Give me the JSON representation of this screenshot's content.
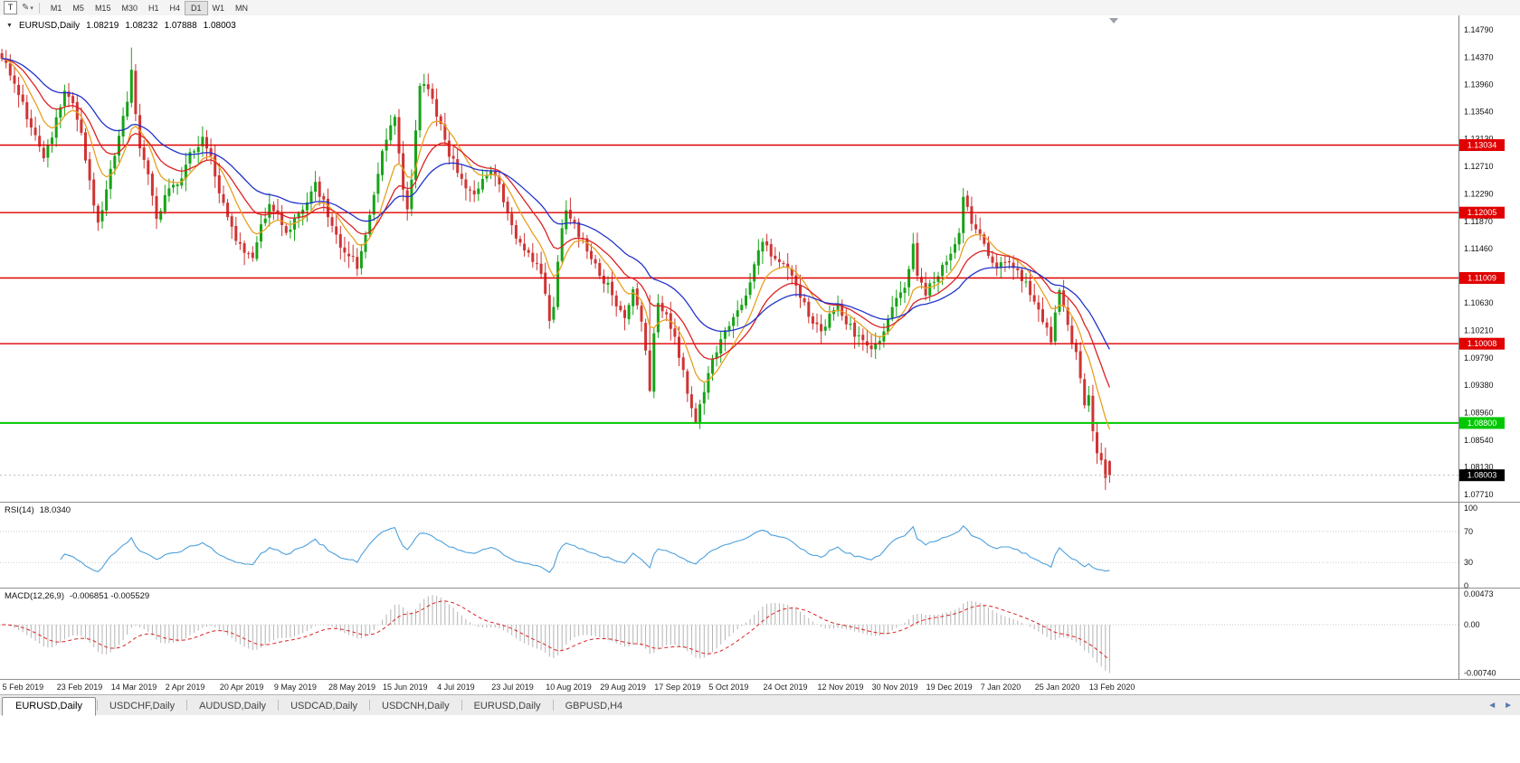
{
  "toolbar": {
    "text_tool_label": "T",
    "timeframes": [
      "M1",
      "M5",
      "M15",
      "M30",
      "H1",
      "H4",
      "D1",
      "W1",
      "MN"
    ],
    "active_timeframe": "D1"
  },
  "chart_data": {
    "type": "candlestick",
    "symbol": "EURUSD",
    "period": "Daily",
    "header": {
      "symbol_period": "EURUSD,Daily",
      "open": "1.08219",
      "high": "1.08232",
      "low": "1.07888",
      "close": "1.08003"
    },
    "price_axis_ticks": [
      "1.14790",
      "1.14370",
      "1.13960",
      "1.13540",
      "1.13130",
      "1.12710",
      "1.12290",
      "1.11870",
      "1.11460",
      "1.11040",
      "1.10630",
      "1.10210",
      "1.09790",
      "1.09380",
      "1.08960",
      "1.08540",
      "1.08130",
      "1.07710"
    ],
    "levels": [
      {
        "price": 1.13034,
        "label": "1.13034",
        "color": "#e00000",
        "text_color": "#ffffff",
        "line_width": 1.4
      },
      {
        "price": 1.12005,
        "label": "1.12005",
        "color": "#e00000",
        "text_color": "#ffffff",
        "line_width": 1.4
      },
      {
        "price": 1.11009,
        "label": "1.11009",
        "color": "#e00000",
        "text_color": "#ffffff",
        "line_width": 1.4
      },
      {
        "price": 1.10008,
        "label": "1.10008",
        "color": "#e00000",
        "text_color": "#ffffff",
        "line_width": 1.4
      },
      {
        "price": 1.088,
        "label": "1.08800",
        "color": "#00c800",
        "text_color": "#ffffff",
        "line_width": 2
      }
    ],
    "current_price": {
      "value": 1.08003,
      "label": "1.08003",
      "bg": "#000000",
      "text_color": "#ffffff"
    },
    "date_labels": [
      "5 Feb 2019",
      "23 Feb 2019",
      "14 Mar 2019",
      "2 Apr 2019",
      "20 Apr 2019",
      "9 May 2019",
      "28 May 2019",
      "15 Jun 2019",
      "4 Jul 2019",
      "23 Jul 2019",
      "10 Aug 2019",
      "29 Aug 2019",
      "17 Sep 2019",
      "5 Oct 2019",
      "24 Oct 2019",
      "12 Nov 2019",
      "30 Nov 2019",
      "19 Dec 2019",
      "7 Jan 2020",
      "25 Jan 2020",
      "13 Feb 2020"
    ],
    "colors": {
      "bull": "#17a317",
      "bear": "#cf3434",
      "ma_fast": "#e8a020",
      "ma_mid": "#dd2222",
      "ma_slow": "#2233cc",
      "rsi": "#4da0dd",
      "macd_hist": "#b4b4b4",
      "macd_signal": "#dd2222",
      "level_red": "#e00000",
      "level_green": "#00c800"
    },
    "candles": {
      "count": 266,
      "anchors": [
        [
          0,
          1.144
        ],
        [
          1,
          1.1432
        ],
        [
          3,
          1.1395
        ],
        [
          5,
          1.1368
        ],
        [
          7,
          1.133
        ],
        [
          9,
          1.1295
        ],
        [
          10,
          1.1282
        ],
        [
          12,
          1.132
        ],
        [
          14,
          1.1365
        ],
        [
          15,
          1.1392
        ],
        [
          16,
          1.138
        ],
        [
          17,
          1.1365
        ],
        [
          19,
          1.1322
        ],
        [
          21,
          1.1245
        ],
        [
          23,
          1.1188
        ],
        [
          24,
          1.1205
        ],
        [
          26,
          1.1268
        ],
        [
          28,
          1.1318
        ],
        [
          30,
          1.1372
        ],
        [
          31,
          1.1412
        ],
        [
          32,
          1.1348
        ],
        [
          33,
          1.1302
        ],
        [
          35,
          1.1262
        ],
        [
          37,
          1.1196
        ],
        [
          39,
          1.1222
        ],
        [
          41,
          1.124
        ],
        [
          43,
          1.1258
        ],
        [
          45,
          1.1288
        ],
        [
          47,
          1.1305
        ],
        [
          48,
          1.1312
        ],
        [
          50,
          1.1282
        ],
        [
          52,
          1.1232
        ],
        [
          54,
          1.1188
        ],
        [
          56,
          1.116
        ],
        [
          58,
          1.1138
        ],
        [
          60,
          1.1128
        ],
        [
          62,
          1.118
        ],
        [
          64,
          1.121
        ],
        [
          66,
          1.1195
        ],
        [
          68,
          1.1172
        ],
        [
          70,
          1.119
        ],
        [
          72,
          1.1208
        ],
        [
          74,
          1.1228
        ],
        [
          75,
          1.1242
        ],
        [
          77,
          1.1215
        ],
        [
          79,
          1.1182
        ],
        [
          81,
          1.1152
        ],
        [
          83,
          1.1136
        ],
        [
          85,
          1.112
        ],
        [
          87,
          1.116
        ],
        [
          89,
          1.123
        ],
        [
          91,
          1.13
        ],
        [
          93,
          1.133
        ],
        [
          94,
          1.1345
        ],
        [
          95,
          1.129
        ],
        [
          96,
          1.124
        ],
        [
          97,
          1.1205
        ],
        [
          98,
          1.1255
        ],
        [
          99,
          1.133
        ],
        [
          100,
          1.139
        ],
        [
          101,
          1.14
        ],
        [
          102,
          1.1385
        ],
        [
          103,
          1.137
        ],
        [
          105,
          1.133
        ],
        [
          107,
          1.129
        ],
        [
          109,
          1.1265
        ],
        [
          111,
          1.124
        ],
        [
          113,
          1.1225
        ],
        [
          115,
          1.125
        ],
        [
          117,
          1.127
        ],
        [
          119,
          1.124
        ],
        [
          121,
          1.12
        ],
        [
          123,
          1.1165
        ],
        [
          125,
          1.1145
        ],
        [
          127,
          1.1128
        ],
        [
          129,
          1.1108
        ],
        [
          130,
          1.1075
        ],
        [
          131,
          1.1042
        ],
        [
          132,
          1.106
        ],
        [
          133,
          1.112
        ],
        [
          134,
          1.118
        ],
        [
          135,
          1.1205
        ],
        [
          136,
          1.1195
        ],
        [
          137,
          1.118
        ],
        [
          139,
          1.1158
        ],
        [
          141,
          1.113
        ],
        [
          143,
          1.1108
        ],
        [
          145,
          1.1088
        ],
        [
          147,
          1.1062
        ],
        [
          149,
          1.1042
        ],
        [
          151,
          1.1085
        ],
        [
          153,
          1.104
        ],
        [
          154,
          1.0995
        ],
        [
          155,
          1.0935
        ],
        [
          156,
          1.102
        ],
        [
          157,
          1.1065
        ],
        [
          159,
          1.104
        ],
        [
          161,
          1.101
        ],
        [
          163,
          1.096
        ],
        [
          164,
          1.0925
        ],
        [
          165,
          1.0898
        ],
        [
          166,
          1.0882
        ],
        [
          167,
          1.0905
        ],
        [
          169,
          1.0955
        ],
        [
          171,
          1.099
        ],
        [
          173,
          1.102
        ],
        [
          175,
          1.1042
        ],
        [
          177,
          1.1066
        ],
        [
          179,
          1.1092
        ],
        [
          181,
          1.114
        ],
        [
          182,
          1.116
        ],
        [
          184,
          1.114
        ],
        [
          186,
          1.1128
        ],
        [
          188,
          1.1118
        ],
        [
          190,
          1.1085
        ],
        [
          192,
          1.106
        ],
        [
          194,
          1.1035
        ],
        [
          196,
          1.1015
        ],
        [
          198,
          1.104
        ],
        [
          200,
          1.1055
        ],
        [
          202,
          1.1035
        ],
        [
          204,
          1.1015
        ],
        [
          206,
          1.1
        ],
        [
          208,
          1.0992
        ],
        [
          210,
          1.101
        ],
        [
          212,
          1.104
        ],
        [
          214,
          1.1065
        ],
        [
          216,
          1.109
        ],
        [
          217,
          1.112
        ],
        [
          218,
          1.115
        ],
        [
          219,
          1.111
        ],
        [
          221,
          1.108
        ],
        [
          223,
          1.1095
        ],
        [
          225,
          1.1115
        ],
        [
          227,
          1.114
        ],
        [
          229,
          1.1175
        ],
        [
          230,
          1.1225
        ],
        [
          231,
          1.1205
        ],
        [
          232,
          1.1185
        ],
        [
          234,
          1.1165
        ],
        [
          236,
          1.114
        ],
        [
          238,
          1.112
        ],
        [
          240,
          1.1125
        ],
        [
          242,
          1.1115
        ],
        [
          244,
          1.11
        ],
        [
          246,
          1.108
        ],
        [
          248,
          1.105
        ],
        [
          250,
          1.102
        ],
        [
          251,
          1.1005
        ],
        [
          252,
          1.1045
        ],
        [
          253,
          1.108
        ],
        [
          254,
          1.1055
        ],
        [
          255,
          1.103
        ],
        [
          256,
          1.0998
        ],
        [
          257,
          1.0982
        ],
        [
          258,
          1.0945
        ],
        [
          259,
          1.0912
        ],
        [
          260,
          1.0918
        ],
        [
          261,
          1.0872
        ],
        [
          262,
          1.0838
        ],
        [
          263,
          1.0828
        ],
        [
          264,
          1.079
        ],
        [
          265,
          1.08003
        ]
      ],
      "specials": {
        "31": {
          "high": 1.1452
        },
        "101": {
          "high": 1.1412
        },
        "155": {
          "high": 1.1075,
          "low": 1.0927
        },
        "166": {
          "low": 1.0879
        },
        "264": {
          "low": 1.0778
        },
        "265": {
          "open": 1.08219,
          "high": 1.08232,
          "low": 1.07888,
          "close": 1.08003
        }
      }
    },
    "moving_averages": [
      {
        "period": 9,
        "color_key": "ma_fast"
      },
      {
        "period": 18,
        "color_key": "ma_mid"
      },
      {
        "period": 34,
        "color_key": "ma_slow"
      }
    ],
    "rsi": {
      "name": "RSI(14)",
      "value": "18.0340",
      "period": 14,
      "axis_ticks": [
        "100",
        "70",
        "30",
        "0"
      ],
      "guide_levels": [
        70,
        30
      ]
    },
    "macd": {
      "name": "MACD(12,26,9)",
      "value": "-0.006851 -0.005529",
      "fast": 12,
      "slow": 26,
      "signal": 9,
      "axis_ticks": [
        "0.00473",
        "0.00",
        "-0.00740"
      ]
    }
  },
  "tabs": {
    "items": [
      {
        "label": "EURUSD,Daily",
        "active": true
      },
      {
        "label": "USDCHF,Daily",
        "active": false
      },
      {
        "label": "AUDUSD,Daily",
        "active": false
      },
      {
        "label": "USDCAD,Daily",
        "active": false
      },
      {
        "label": "USDCNH,Daily",
        "active": false
      },
      {
        "label": "EURUSD,Daily",
        "active": false
      },
      {
        "label": "GBPUSD,H4",
        "active": false
      }
    ]
  }
}
